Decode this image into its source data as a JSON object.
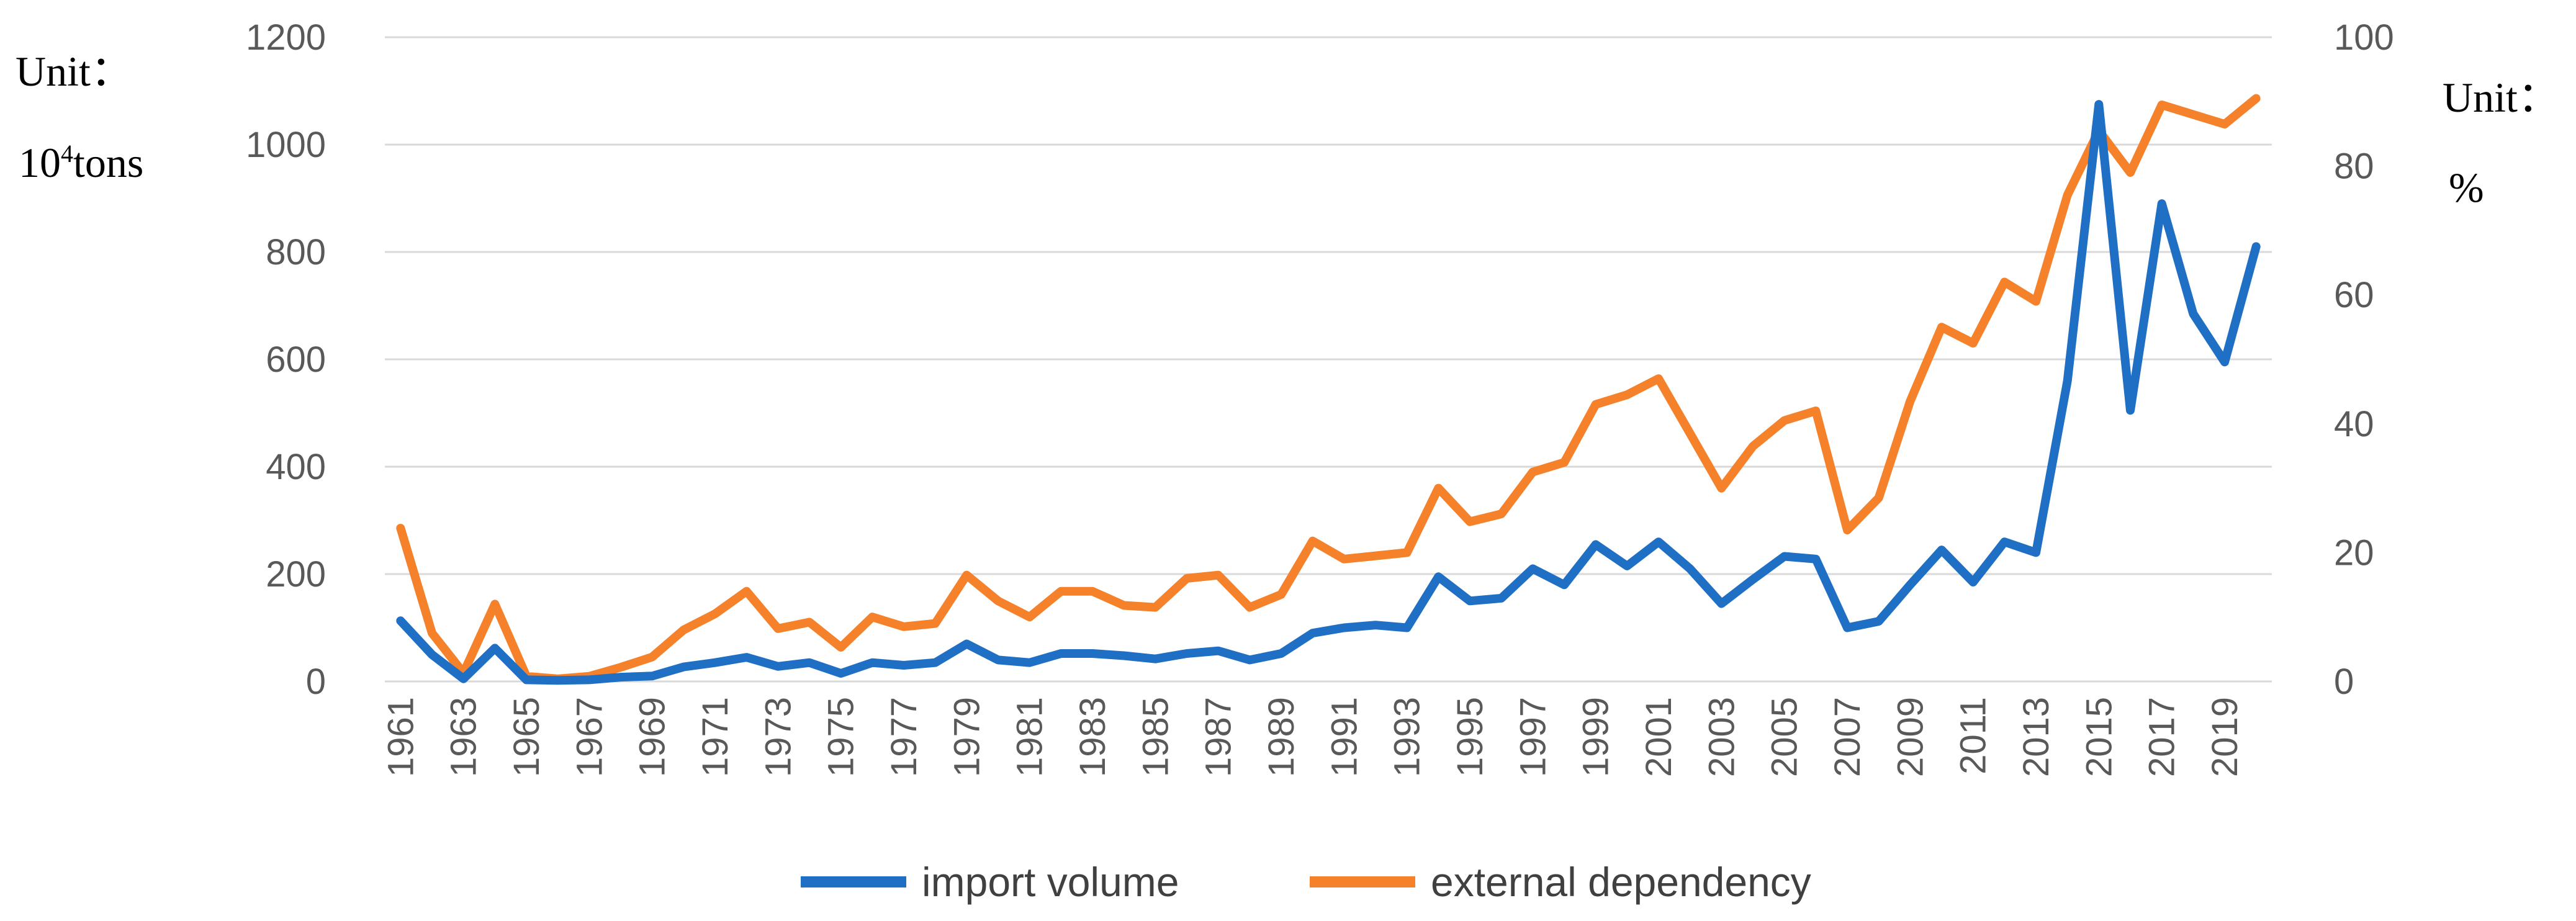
{
  "chart_data": {
    "type": "line",
    "title": "",
    "x": [
      "1961",
      "1962",
      "1963",
      "1964",
      "1965",
      "1966",
      "1967",
      "1968",
      "1969",
      "1970",
      "1971",
      "1972",
      "1973",
      "1974",
      "1975",
      "1976",
      "1977",
      "1978",
      "1979",
      "1980",
      "1981",
      "1982",
      "1983",
      "1984",
      "1985",
      "1986",
      "1987",
      "1988",
      "1989",
      "1990",
      "1991",
      "1992",
      "1993",
      "1994",
      "1995",
      "1996",
      "1997",
      "1998",
      "1999",
      "2000",
      "2001",
      "2002",
      "2003",
      "2004",
      "2005",
      "2006",
      "2007",
      "2008",
      "2009",
      "2010",
      "2011",
      "2012",
      "2013",
      "2014",
      "2015",
      "2016",
      "2017",
      "2018",
      "2019",
      "2020"
    ],
    "x_tick_labels": [
      "1961",
      "1963",
      "1965",
      "1967",
      "1969",
      "1971",
      "1973",
      "1975",
      "1977",
      "1979",
      "1981",
      "1983",
      "1985",
      "1987",
      "1989",
      "1991",
      "1993",
      "1995",
      "1997",
      "1999",
      "2001",
      "2003",
      "2005",
      "2007",
      "2009",
      "2011",
      "2013",
      "2015",
      "2017",
      "2019"
    ],
    "y_left": {
      "unit_line1": "Unit：",
      "unit_base": "10",
      "unit_exp": "4",
      "unit_rest": "tons",
      "ylim": [
        0,
        1200
      ],
      "ticks": [
        "0",
        "200",
        "400",
        "600",
        "800",
        "1000",
        "1200"
      ]
    },
    "y_right": {
      "unit_line1": "Unit：",
      "unit_line2": "%",
      "ylim": [
        0,
        100
      ],
      "ticks": [
        "0",
        "20",
        "40",
        "60",
        "80",
        "100"
      ]
    },
    "grid": true,
    "legend_position": "bottom",
    "series": [
      {
        "name": "import volume",
        "axis": "left",
        "color": "#1f6fc5",
        "values": [
          113,
          50,
          5,
          62,
          3,
          2,
          3,
          8,
          10,
          27,
          35,
          45,
          28,
          35,
          15,
          35,
          30,
          35,
          70,
          40,
          35,
          52,
          52,
          48,
          42,
          52,
          57,
          40,
          52,
          90,
          100,
          105,
          100,
          195,
          150,
          155,
          210,
          180,
          255,
          215,
          260,
          210,
          145,
          190,
          233,
          228,
          100,
          112,
          180,
          245,
          185,
          260,
          240,
          560,
          1075,
          505,
          890,
          685,
          595,
          810
        ]
      },
      {
        "name": "external dependency",
        "axis": "right",
        "color": "#f5812a",
        "values": [
          23.8,
          7.5,
          1.3,
          12,
          0.8,
          0.4,
          0.8,
          2.2,
          3.8,
          8,
          10.5,
          14,
          8.2,
          9.2,
          5.3,
          10,
          8.5,
          9,
          16.5,
          12.5,
          10,
          14,
          14,
          11.8,
          11.5,
          16,
          16.5,
          11.5,
          13.5,
          21.8,
          19,
          19.5,
          20,
          30,
          24.8,
          26,
          32.5,
          34,
          43,
          44.5,
          47,
          38.5,
          30,
          36.5,
          40.5,
          42,
          23.5,
          28.5,
          43.5,
          55,
          52.5,
          62,
          59,
          75.5,
          85.5,
          79,
          89.5,
          88,
          86.5,
          90.5
        ]
      }
    ]
  }
}
